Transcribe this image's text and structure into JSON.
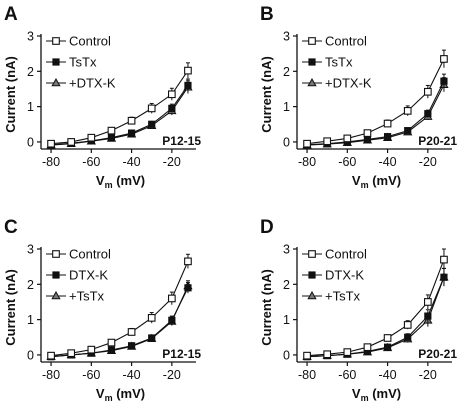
{
  "chart_data": [
    {
      "type": "line",
      "panel": "A",
      "age_label": "P12-15",
      "ylabel": "Current (nA)",
      "xlabel_main": "V",
      "xlabel_sub": "m",
      "xlabel_unit": " (mV)",
      "xlim": [
        -85,
        -8
      ],
      "ylim": [
        -0.2,
        3
      ],
      "xticks": [
        -80,
        -60,
        -40,
        -20
      ],
      "yticks": [
        0,
        1,
        2,
        3
      ],
      "x": [
        -80,
        -70,
        -60,
        -50,
        -40,
        -30,
        -20,
        -12
      ],
      "series": [
        {
          "name": "Control",
          "marker": "open-square",
          "values": [
            -0.05,
            0.0,
            0.12,
            0.32,
            0.6,
            0.95,
            1.35,
            2.02
          ],
          "errors": [
            0.03,
            0.03,
            0.05,
            0.07,
            0.1,
            0.14,
            0.17,
            0.22
          ]
        },
        {
          "name": "TsTx",
          "marker": "filled-square",
          "values": [
            -0.08,
            -0.04,
            0.03,
            0.12,
            0.25,
            0.5,
            0.95,
            1.6
          ],
          "errors": [
            0.02,
            0.02,
            0.04,
            0.05,
            0.06,
            0.08,
            0.12,
            0.18
          ]
        },
        {
          "name": "+DTX-K",
          "marker": "triangle",
          "values": [
            -0.09,
            -0.05,
            0.02,
            0.1,
            0.22,
            0.46,
            0.88,
            1.55
          ],
          "errors": [
            0.02,
            0.02,
            0.04,
            0.05,
            0.06,
            0.08,
            0.12,
            0.18
          ]
        }
      ]
    },
    {
      "type": "line",
      "panel": "B",
      "age_label": "P20-21",
      "ylabel": "Current (nA)",
      "xlabel_main": "V",
      "xlabel_sub": "m",
      "xlabel_unit": " (mV)",
      "xlim": [
        -85,
        -8
      ],
      "ylim": [
        -0.2,
        3
      ],
      "xticks": [
        -80,
        -60,
        -40,
        -20
      ],
      "yticks": [
        0,
        1,
        2,
        3
      ],
      "x": [
        -80,
        -70,
        -60,
        -50,
        -40,
        -30,
        -20,
        -12
      ],
      "series": [
        {
          "name": "Control",
          "marker": "open-square",
          "values": [
            -0.05,
            0.02,
            0.1,
            0.25,
            0.52,
            0.88,
            1.42,
            2.35
          ],
          "errors": [
            0.03,
            0.03,
            0.05,
            0.07,
            0.1,
            0.14,
            0.18,
            0.25
          ]
        },
        {
          "name": "TsTx",
          "marker": "filled-square",
          "values": [
            -0.08,
            -0.05,
            0.0,
            0.07,
            0.15,
            0.32,
            0.8,
            1.72
          ],
          "errors": [
            0.02,
            0.02,
            0.03,
            0.04,
            0.05,
            0.07,
            0.1,
            0.2
          ]
        },
        {
          "name": "+DTX-K",
          "marker": "triangle",
          "values": [
            -0.09,
            -0.06,
            -0.02,
            0.05,
            0.12,
            0.28,
            0.72,
            1.62
          ],
          "errors": [
            0.02,
            0.02,
            0.03,
            0.04,
            0.05,
            0.07,
            0.1,
            0.2
          ]
        }
      ]
    },
    {
      "type": "line",
      "panel": "C",
      "age_label": "P12-15",
      "ylabel": "Current (nA)",
      "xlabel_main": "V",
      "xlabel_sub": "m",
      "xlabel_unit": " (mV)",
      "xlim": [
        -85,
        -8
      ],
      "ylim": [
        -0.2,
        3
      ],
      "xticks": [
        -80,
        -60,
        -40,
        -20
      ],
      "yticks": [
        0,
        1,
        2,
        3
      ],
      "x": [
        -80,
        -70,
        -60,
        -50,
        -40,
        -30,
        -20,
        -12
      ],
      "series": [
        {
          "name": "Control",
          "marker": "open-square",
          "values": [
            -0.02,
            0.05,
            0.15,
            0.35,
            0.65,
            1.05,
            1.6,
            2.65
          ],
          "errors": [
            0.03,
            0.03,
            0.05,
            0.07,
            0.1,
            0.15,
            0.18,
            0.2
          ]
        },
        {
          "name": "DTX-K",
          "marker": "filled-square",
          "values": [
            -0.05,
            0.0,
            0.05,
            0.14,
            0.26,
            0.48,
            0.98,
            1.9
          ],
          "errors": [
            0.02,
            0.02,
            0.04,
            0.05,
            0.06,
            0.08,
            0.12,
            0.15
          ]
        },
        {
          "name": "+TsTx",
          "marker": "triangle",
          "values": [
            -0.05,
            0.0,
            0.05,
            0.12,
            0.24,
            0.46,
            0.95,
            1.95
          ],
          "errors": [
            0.02,
            0.02,
            0.04,
            0.05,
            0.06,
            0.08,
            0.12,
            0.15
          ]
        }
      ]
    },
    {
      "type": "line",
      "panel": "D",
      "age_label": "P20-21",
      "ylabel": "Current (nA)",
      "xlabel_main": "V",
      "xlabel_sub": "m",
      "xlabel_unit": " (mV)",
      "xlim": [
        -85,
        -8
      ],
      "ylim": [
        -0.2,
        3
      ],
      "xticks": [
        -80,
        -60,
        -40,
        -20
      ],
      "yticks": [
        0,
        1,
        2,
        3
      ],
      "x": [
        -80,
        -70,
        -60,
        -50,
        -40,
        -30,
        -20,
        -12
      ],
      "series": [
        {
          "name": "Control",
          "marker": "open-square",
          "values": [
            -0.02,
            0.02,
            0.08,
            0.22,
            0.48,
            0.85,
            1.5,
            2.7
          ],
          "errors": [
            0.03,
            0.03,
            0.05,
            0.06,
            0.08,
            0.12,
            0.2,
            0.3
          ]
        },
        {
          "name": "DTX-K",
          "marker": "filled-square",
          "values": [
            -0.05,
            -0.02,
            0.02,
            0.1,
            0.22,
            0.5,
            1.1,
            2.2
          ],
          "errors": [
            0.02,
            0.02,
            0.04,
            0.05,
            0.06,
            0.1,
            0.18,
            0.25
          ]
        },
        {
          "name": "+TsTx",
          "marker": "triangle",
          "values": [
            -0.05,
            -0.02,
            0.02,
            0.08,
            0.2,
            0.45,
            0.98,
            2.2
          ],
          "errors": [
            0.02,
            0.02,
            0.04,
            0.05,
            0.06,
            0.1,
            0.18,
            0.25
          ]
        }
      ]
    }
  ]
}
